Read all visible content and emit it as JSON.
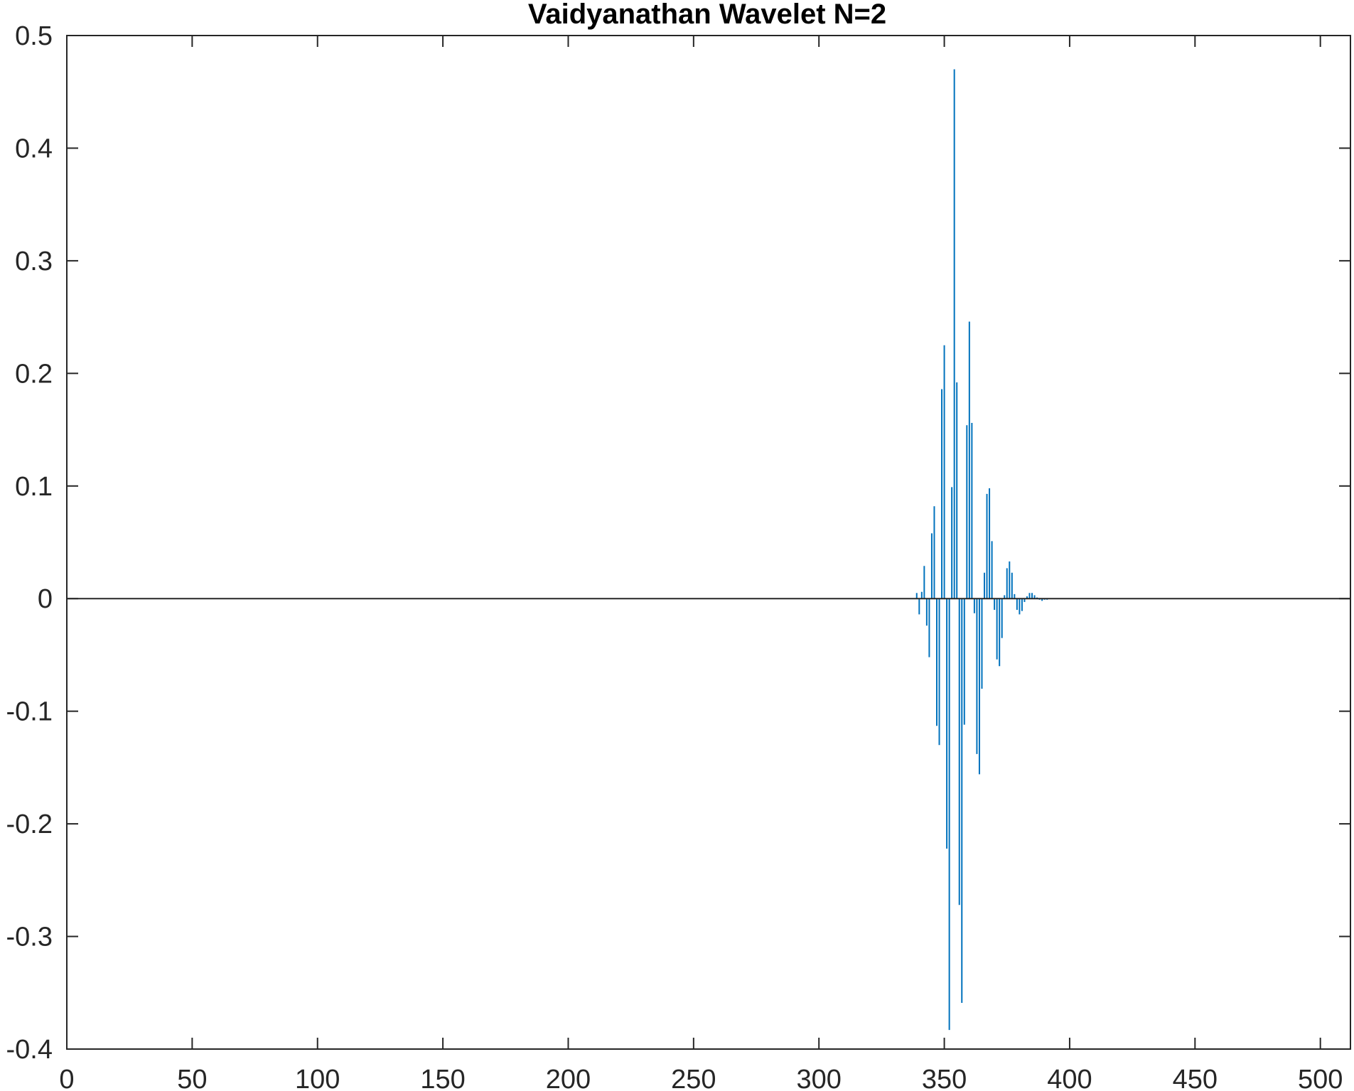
{
  "chart_data": {
    "type": "stem",
    "title": "Vaidyanathan Wavelet N=2",
    "xlabel": "",
    "ylabel": "",
    "xlim": [
      0,
      512
    ],
    "ylim": [
      -0.4,
      0.5
    ],
    "xticks": [
      0,
      50,
      100,
      150,
      200,
      250,
      300,
      350,
      400,
      450,
      500
    ],
    "yticks": [
      -0.4,
      -0.3,
      -0.2,
      -0.1,
      0,
      0.1,
      0.2,
      0.3,
      0.4,
      0.5
    ],
    "xtick_labels": [
      "0",
      "50",
      "100",
      "150",
      "200",
      "250",
      "300",
      "350",
      "400",
      "450",
      "500"
    ],
    "ytick_labels": [
      "-0.4",
      "-0.3",
      "-0.2",
      "-0.1",
      "0",
      "0.1",
      "0.2",
      "0.3",
      "0.4",
      "0.5"
    ],
    "grid": false,
    "baseline": 0,
    "series": [
      {
        "color": "#0072BD",
        "x": [
          339,
          340,
          341,
          342,
          343,
          344,
          345,
          346,
          347,
          348,
          349,
          350,
          351,
          352,
          353,
          354,
          355,
          356,
          357,
          358,
          359,
          360,
          361,
          362,
          363,
          364,
          365,
          366,
          367,
          368,
          369,
          370,
          371,
          372,
          373,
          374,
          375,
          376,
          377,
          378,
          379,
          380,
          381,
          382,
          383,
          384,
          385,
          386,
          387,
          388,
          389,
          390,
          391,
          392,
          393
        ],
        "y": [
          0.005,
          -0.014,
          0.006,
          0.029,
          -0.024,
          -0.052,
          0.058,
          0.082,
          -0.113,
          -0.13,
          0.186,
          0.225,
          -0.222,
          -0.383,
          0.099,
          0.47,
          0.192,
          -0.272,
          -0.359,
          -0.112,
          0.154,
          0.246,
          0.156,
          -0.013,
          -0.138,
          -0.156,
          -0.08,
          0.023,
          0.093,
          0.098,
          0.051,
          -0.01,
          -0.054,
          -0.06,
          -0.035,
          0.003,
          0.027,
          0.033,
          0.023,
          0.004,
          -0.01,
          -0.014,
          -0.011,
          -0.003,
          0.002,
          0.005,
          0.005,
          0.003,
          0.001,
          -0.001,
          -0.002,
          -0.001,
          -0.001,
          0.0,
          0.0
        ]
      }
    ]
  }
}
